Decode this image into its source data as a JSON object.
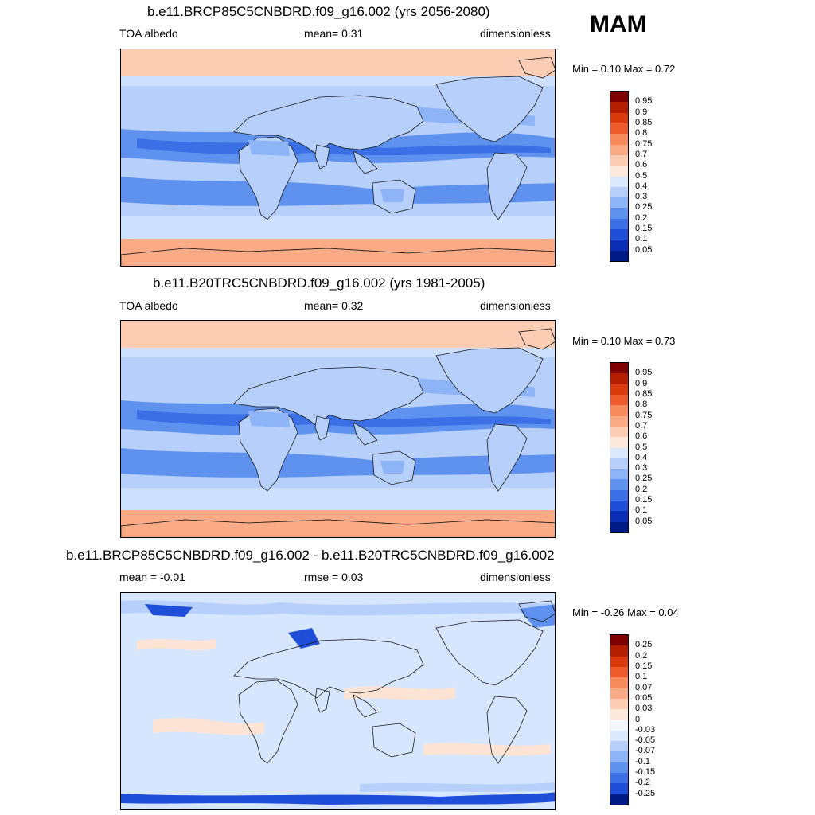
{
  "season": "MAM",
  "panels": [
    {
      "id": "future",
      "title": "b.e11.BRCP85C5CNBDRD.f09_g16.002 (yrs 2056-2080)",
      "left_label": "TOA albedo",
      "mid_label": "mean=   0.31",
      "right_label": "dimensionless",
      "minmax": "Min =   0.10 Max =   0.72",
      "colorbar": {
        "labels": [
          "0.95",
          "0.9",
          "0.85",
          "0.8",
          "0.75",
          "0.7",
          "0.6",
          "0.5",
          "0.4",
          "0.3",
          "0.25",
          "0.2",
          "0.15",
          "0.1",
          "0.05"
        ],
        "colors": [
          "#7f0000",
          "#b51e00",
          "#d9390b",
          "#ef5a2b",
          "#f98a5c",
          "#fbaa86",
          "#fdcdb3",
          "#fde8dc",
          "#dbe9ff",
          "#b6d0fb",
          "#8db4f6",
          "#5f92ef",
          "#3a6fe5",
          "#1f4fd8",
          "#0a2fb6",
          "#001a88"
        ]
      },
      "map": {
        "palette": [
          "#fdcdb3",
          "#fbaa86",
          "#cde0ff",
          "#b6d0fb",
          "#8db4f6",
          "#5f92ef",
          "#3a6fe5",
          "#1f4fd8"
        ]
      }
    },
    {
      "id": "present",
      "title": "b.e11.B20TRC5CNBDRD.f09_g16.002 (yrs 1981-2005)",
      "left_label": "TOA albedo",
      "mid_label": "mean=   0.32",
      "right_label": "dimensionless",
      "minmax": "Min =   0.10 Max =   0.73",
      "colorbar": {
        "labels": [
          "0.95",
          "0.9",
          "0.85",
          "0.8",
          "0.75",
          "0.7",
          "0.6",
          "0.5",
          "0.4",
          "0.3",
          "0.25",
          "0.2",
          "0.15",
          "0.1",
          "0.05"
        ],
        "colors": [
          "#7f0000",
          "#b51e00",
          "#d9390b",
          "#ef5a2b",
          "#f98a5c",
          "#fbaa86",
          "#fdcdb3",
          "#fde8dc",
          "#dbe9ff",
          "#b6d0fb",
          "#8db4f6",
          "#5f92ef",
          "#3a6fe5",
          "#1f4fd8",
          "#0a2fb6",
          "#001a88"
        ]
      },
      "map": {
        "palette": [
          "#fdcdb3",
          "#fbaa86",
          "#cde0ff",
          "#b6d0fb",
          "#8db4f6",
          "#5f92ef",
          "#3a6fe5",
          "#1f4fd8"
        ]
      }
    },
    {
      "id": "difference",
      "title": "b.e11.BRCP85C5CNBDRD.f09_g16.002 - b.e11.B20TRC5CNBDRD.f09_g16.002",
      "left_label": "mean =  -0.01",
      "mid_label": "rmse =   0.03",
      "right_label": "dimensionless",
      "minmax": "Min =  -0.26 Max =   0.04",
      "colorbar": {
        "labels": [
          "0.25",
          "0.2",
          "0.15",
          "0.1",
          "0.07",
          "0.05",
          "0.03",
          "0",
          "-0.03",
          "-0.05",
          "-0.07",
          "-0.1",
          "-0.15",
          "-0.2",
          "-0.25"
        ],
        "colors": [
          "#7f0000",
          "#b51e00",
          "#d9390b",
          "#ef5a2b",
          "#f98a5c",
          "#fbaa86",
          "#fdcdb3",
          "#fde8dc",
          "#f2f6ff",
          "#dbe9ff",
          "#b6d0fb",
          "#8db4f6",
          "#5f92ef",
          "#3a6fe5",
          "#1f4fd8",
          "#001a88"
        ]
      },
      "map": {
        "palette": [
          "#d6e6ff",
          "#fde3d3",
          "#b6d0fb",
          "#5f92ef",
          "#1f4fd8"
        ]
      }
    }
  ]
}
